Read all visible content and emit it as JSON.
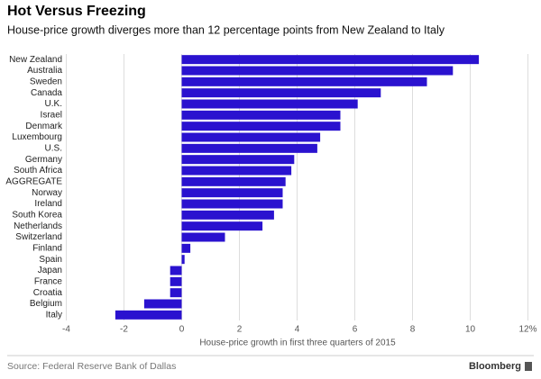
{
  "chart_data": {
    "type": "hbar",
    "title": "Hot Versus Freezing",
    "subtitle": "House-price growth diverges more than 12 percentage points from New Zealand to Italy",
    "categories": [
      "New Zealand",
      "Australia",
      "Sweden",
      "Canada",
      "U.K.",
      "Israel",
      "Denmark",
      "Luxembourg",
      "U.S.",
      "Germany",
      "South Africa",
      "AGGREGATE",
      "Norway",
      "Ireland",
      "South Korea",
      "Netherlands",
      "Switzerland",
      "Finland",
      "Spain",
      "Japan",
      "France",
      "Croatia",
      "Belgium",
      "Italy"
    ],
    "values": [
      10.3,
      9.4,
      8.5,
      6.9,
      6.1,
      5.5,
      5.5,
      4.8,
      4.7,
      3.9,
      3.8,
      3.6,
      3.5,
      3.5,
      3.2,
      2.8,
      1.5,
      0.3,
      0.1,
      -0.4,
      -0.4,
      -0.4,
      -1.3,
      -2.3
    ],
    "color": "#2a12cf",
    "xlim": [
      -4,
      12
    ],
    "xticks": [
      -4,
      -2,
      0,
      2,
      4,
      6,
      8,
      10,
      {
        "value": 12,
        "label": "12%"
      }
    ],
    "xlabel": "House-price growth in first three quarters of 2015",
    "grid": true,
    "source": "Source: Federal Reserve Bank of Dallas",
    "brand": "Bloomberg"
  }
}
